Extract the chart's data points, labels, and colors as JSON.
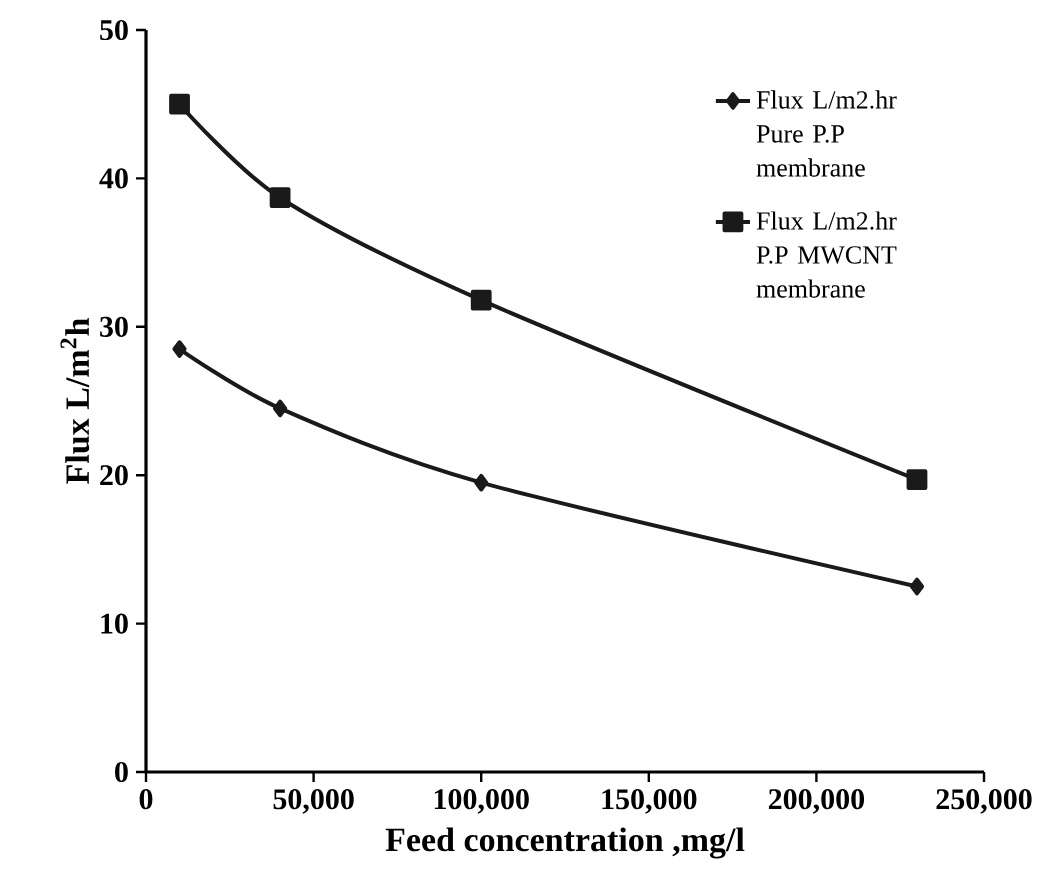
{
  "chart_data": {
    "type": "line",
    "xlabel": "Feed concentration ,mg/l",
    "ylabel": "Flux L/m$^{2}$h",
    "x": [
      10000,
      40000,
      100000,
      230000
    ],
    "series": [
      {
        "name": "Flux L/m2.hr Pure P.P membrane",
        "color": "#1a1a1a",
        "marker": "diamond",
        "values": [
          28.5,
          24.5,
          19.5,
          12.5
        ]
      },
      {
        "name": "Flux L/m2.hr P.P MWCNT membrane",
        "color": "#1a1a1a",
        "marker": "square",
        "values": [
          45,
          38.7,
          31.8,
          19.7
        ]
      }
    ],
    "xlim": [
      0,
      250000
    ],
    "ylim": [
      0,
      50
    ],
    "xticks": [
      0,
      {
        "value": 50000,
        "label": "50,000"
      },
      {
        "value": 100000,
        "label": "100,000"
      },
      {
        "value": 150000,
        "label": "150,000"
      },
      {
        "value": 200000,
        "label": "200,000"
      },
      {
        "value": 250000,
        "label": "250,000"
      }
    ],
    "yticks": [
      0,
      10,
      20,
      30,
      40,
      50
    ],
    "grid": false,
    "legend": "top right",
    "line_style": "solid"
  }
}
